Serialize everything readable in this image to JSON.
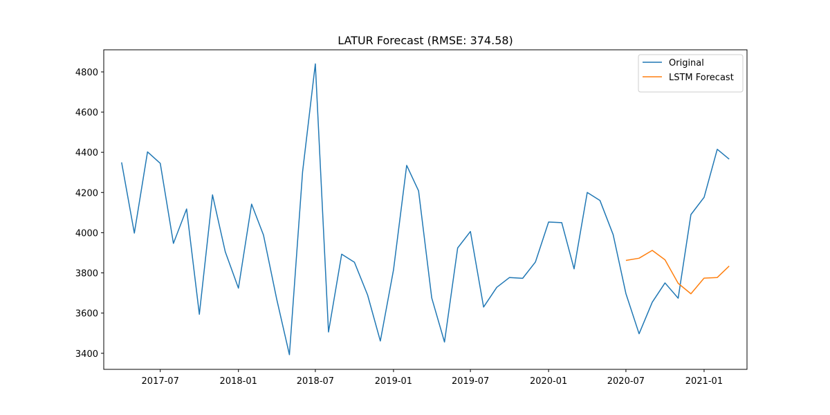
{
  "chart_data": {
    "type": "line",
    "title": "LATUR Forecast (RMSE: 374.58)",
    "xlabel": "",
    "ylabel": "",
    "x_ticks": [
      "2017-07",
      "2018-01",
      "2018-07",
      "2019-01",
      "2019-07",
      "2020-01",
      "2020-07",
      "2021-01"
    ],
    "y_ticks": [
      3400,
      3600,
      3800,
      4000,
      4200,
      4400,
      4600,
      4800
    ],
    "xlim": [
      "2017-02-18",
      "2021-04-12"
    ],
    "ylim": [
      3320,
      4910
    ],
    "grid": false,
    "legend_position": "top-right",
    "series": [
      {
        "name": "Original",
        "color": "#1f77b4",
        "x": [
          "2017-04",
          "2017-05",
          "2017-06",
          "2017-07",
          "2017-08",
          "2017-09",
          "2017-10",
          "2017-11",
          "2017-12",
          "2018-01",
          "2018-02",
          "2018-03",
          "2018-04",
          "2018-05",
          "2018-06",
          "2018-07",
          "2018-08",
          "2018-09",
          "2018-10",
          "2018-11",
          "2018-12",
          "2019-01",
          "2019-02",
          "2019-03",
          "2019-04",
          "2019-05",
          "2019-06",
          "2019-07",
          "2019-08",
          "2019-09",
          "2019-10",
          "2019-11",
          "2019-12",
          "2020-01",
          "2020-02",
          "2020-03",
          "2020-04",
          "2020-05",
          "2020-06",
          "2020-07",
          "2020-08",
          "2020-09",
          "2020-10",
          "2020-11",
          "2020-12",
          "2021-01",
          "2021-02",
          "2021-03"
        ],
        "values": [
          4350,
          3998,
          4402,
          4345,
          3947,
          4118,
          3594,
          4188,
          3905,
          3724,
          4142,
          3988,
          3670,
          3393,
          4303,
          4840,
          3506,
          3893,
          3853,
          3690,
          3461,
          3815,
          4335,
          4208,
          3675,
          3456,
          3924,
          4006,
          3630,
          3728,
          3777,
          3773,
          3854,
          4053,
          4050,
          3820,
          4200,
          4160,
          3990,
          3697,
          3497,
          3654,
          3750,
          3674,
          4090,
          4176,
          4415,
          4366
        ]
      },
      {
        "name": "LSTM Forecast",
        "color": "#ff7f0e",
        "x": [
          "2020-07",
          "2020-08",
          "2020-09",
          "2020-10",
          "2020-11",
          "2020-12",
          "2021-01",
          "2021-02",
          "2021-03"
        ],
        "values": [
          3862,
          3873,
          3912,
          3865,
          3748,
          3696,
          3774,
          3777,
          3834
        ]
      }
    ]
  }
}
